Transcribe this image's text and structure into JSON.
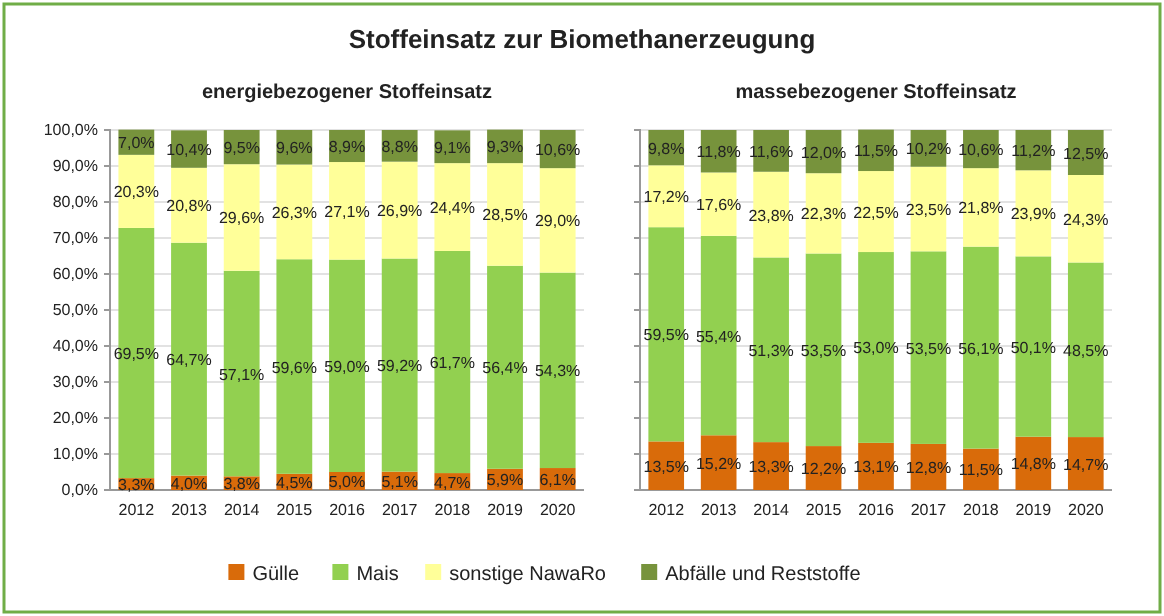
{
  "chart_data": [
    {
      "type": "bar",
      "stacked": true,
      "title": "Stoffeinsatz zur Biomethanerzeugung",
      "subtitle": "energiebezogener  Stoffeinsatz",
      "categories": [
        "2012",
        "2013",
        "2014",
        "2015",
        "2016",
        "2017",
        "2018",
        "2019",
        "2020"
      ],
      "series": [
        {
          "name": "Gülle",
          "color": "#d96b0a",
          "values": [
            3.3,
            4.0,
            3.8,
            4.5,
            5.0,
            5.1,
            4.7,
            5.9,
            6.1
          ],
          "value_labels": [
            "3,3%",
            "4,0%",
            "3,8%",
            "4,5%",
            "5,0%",
            "5,1%",
            "4,7%",
            "5,9%",
            "6,1%"
          ]
        },
        {
          "name": "Mais",
          "color": "#92d050",
          "values": [
            69.5,
            64.7,
            57.1,
            59.6,
            59.0,
            59.2,
            61.7,
            56.4,
            54.3
          ],
          "value_labels": [
            "69,5%",
            "64,7%",
            "57,1%",
            "59,6%",
            "59,0%",
            "59,2%",
            "61,7%",
            "56,4%",
            "54,3%"
          ]
        },
        {
          "name": "sonstige NawaRo",
          "color": "#ffff99",
          "values": [
            20.3,
            20.8,
            29.6,
            26.3,
            27.1,
            26.9,
            24.4,
            28.5,
            29.0
          ],
          "value_labels": [
            "20,3%",
            "20,8%",
            "29,6%",
            "26,3%",
            "27,1%",
            "26,9%",
            "24,4%",
            "28,5%",
            "29,0%"
          ]
        },
        {
          "name": "Abfälle und Reststoffe",
          "color": "#77933c",
          "values": [
            7.0,
            10.4,
            9.5,
            9.6,
            8.9,
            8.8,
            9.1,
            9.3,
            10.6
          ],
          "value_labels": [
            "7,0%",
            "10,4%",
            "9,5%",
            "9,6%",
            "8,9%",
            "8,8%",
            "9,1%",
            "9,3%",
            "10,6%"
          ]
        }
      ],
      "ylim": [
        0,
        100
      ],
      "yticks": [
        {
          "value": 0,
          "label": "0,0%"
        },
        {
          "value": 10,
          "label": "10,0%"
        },
        {
          "value": 20,
          "label": "20,0%"
        },
        {
          "value": 30,
          "label": "30,0%"
        },
        {
          "value": 40,
          "label": "40,0%"
        },
        {
          "value": 50,
          "label": "50,0%"
        },
        {
          "value": 60,
          "label": "60,0%"
        },
        {
          "value": 70,
          "label": "70,0%"
        },
        {
          "value": 80,
          "label": "80,0%"
        },
        {
          "value": 90,
          "label": "90,0%"
        },
        {
          "value": 100,
          "label": "100,0%"
        }
      ],
      "grid": "y",
      "legend": "bottom"
    },
    {
      "type": "bar",
      "stacked": true,
      "subtitle": "massebezogener  Stoffeinsatz",
      "categories": [
        "2012",
        "2013",
        "2014",
        "2015",
        "2016",
        "2017",
        "2018",
        "2019",
        "2020"
      ],
      "series": [
        {
          "color": "#d96b0a",
          "values": [
            13.5,
            15.2,
            13.3,
            12.2,
            13.1,
            12.8,
            11.5,
            14.8,
            14.7
          ],
          "value_labels": [
            "13,5%",
            "15,2%",
            "13,3%",
            "12,2%",
            "13,1%",
            "12,8%",
            "11,5%",
            "14,8%",
            "14,7%"
          ]
        },
        {
          "color": "#92d050",
          "values": [
            59.5,
            55.4,
            51.3,
            53.5,
            53.0,
            53.5,
            56.1,
            50.1,
            48.5
          ],
          "value_labels": [
            "59,5%",
            "55,4%",
            "51,3%",
            "53,5%",
            "53,0%",
            "53,5%",
            "56,1%",
            "50,1%",
            "48,5%"
          ]
        },
        {
          "color": "#ffff99",
          "values": [
            17.2,
            17.6,
            23.8,
            22.3,
            22.5,
            23.5,
            21.8,
            23.9,
            24.3
          ],
          "value_labels": [
            "17,2%",
            "17,6%",
            "23,8%",
            "22,3%",
            "22,5%",
            "23,5%",
            "21,8%",
            "23,9%",
            "24,3%"
          ]
        },
        {
          "color": "#77933c",
          "values": [
            9.8,
            11.8,
            11.6,
            12.0,
            11.5,
            10.2,
            10.6,
            11.2,
            12.5
          ],
          "value_labels": [
            "9,8%",
            "11,8%",
            "11,6%",
            "12,0%",
            "11,5%",
            "10,2%",
            "10,6%",
            "11,2%",
            "12,5%"
          ]
        }
      ],
      "ylim": [
        0,
        100
      ],
      "yticks": [
        {
          "value": 0,
          "label": null
        },
        {
          "value": 10,
          "label": null
        },
        {
          "value": 20,
          "label": null
        },
        {
          "value": 30,
          "label": null
        },
        {
          "value": 40,
          "label": null
        },
        {
          "value": 50,
          "label": null
        },
        {
          "value": 60,
          "label": null
        },
        {
          "value": 70,
          "label": null
        },
        {
          "value": 80,
          "label": null
        },
        {
          "value": 90,
          "label": null
        },
        {
          "value": 100,
          "label": null
        }
      ],
      "grid": "y",
      "tick_labels": "x"
    }
  ]
}
